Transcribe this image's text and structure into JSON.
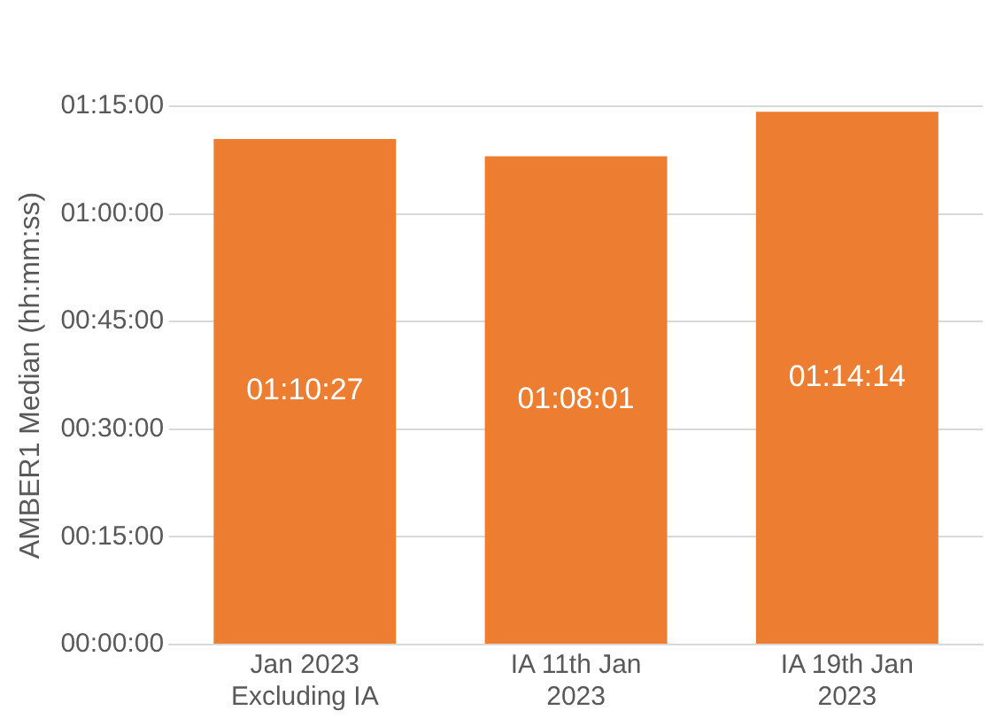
{
  "chart_data": {
    "type": "bar",
    "ylabel": "AMBER1 Median (hh:mm:ss)",
    "categories": [
      "Jan 2023 Excluding IA",
      "IA 11th Jan 2023",
      "IA 19th Jan 2023"
    ],
    "values": [
      4227,
      4081,
      4454
    ],
    "color": "#ed7d31",
    "value_labels": [
      "01:10:27",
      "01:08:01",
      "01:14:14"
    ],
    "ylim": [
      0,
      4500
    ],
    "yticks": [
      {
        "value": 0,
        "label": "00:00:00"
      },
      {
        "value": 900,
        "label": "00:15:00"
      },
      {
        "value": 1800,
        "label": "00:30:00"
      },
      {
        "value": 2700,
        "label": "00:45:00"
      },
      {
        "value": 3600,
        "label": "01:00:00"
      },
      {
        "value": 4500,
        "label": "01:15:00"
      }
    ],
    "grid": "y"
  }
}
